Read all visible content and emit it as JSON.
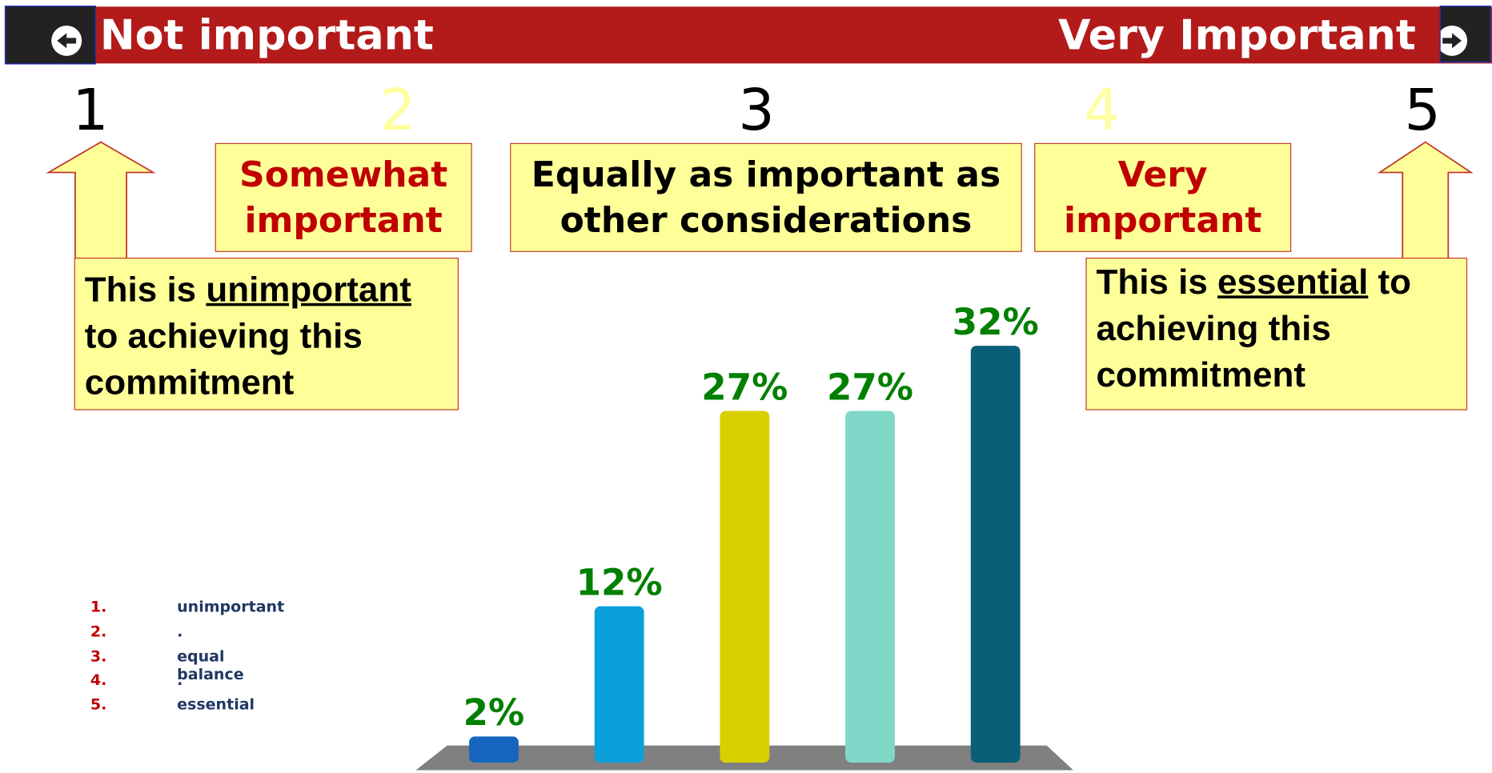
{
  "header": {
    "left": "Not important",
    "right": "Very Important"
  },
  "scale": [
    "1",
    "2",
    "3",
    "4",
    "5"
  ],
  "boxes": [
    {
      "lines": [
        "Somewhat",
        "important"
      ]
    },
    {
      "lines": [
        "Equally as important as",
        "other considerations"
      ]
    },
    {
      "lines": [
        "Very",
        "important"
      ]
    }
  ],
  "callouts": [
    {
      "parts": [
        "This is ",
        "unimportant",
        " to achieving this commitment"
      ]
    },
    {
      "parts": [
        "This is ",
        "essential",
        " to achieving this commitment"
      ]
    }
  ],
  "legend": {
    "items": [
      {
        "number": "1.",
        "label": "unimportant"
      },
      {
        "number": "2.",
        "label": "."
      },
      {
        "number": "3.",
        "label": "equal balance"
      },
      {
        "number": "4.",
        "label": "."
      },
      {
        "number": "5.",
        "label": "essential"
      }
    ]
  },
  "chart_data": {
    "type": "bar",
    "values": [
      2,
      12,
      27,
      27,
      32
    ],
    "value_labels": [
      "2%",
      "12%",
      "27%",
      "27%",
      "32%"
    ],
    "colors": [
      "#1565c0",
      "#0aa0dc",
      "#d8d000",
      "#80d8c8",
      "#0a5f78"
    ],
    "label_color": "#008000"
  }
}
